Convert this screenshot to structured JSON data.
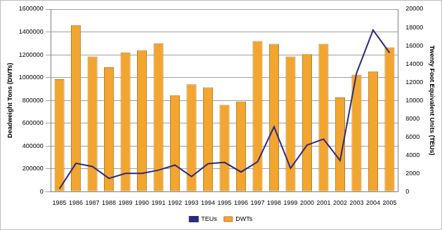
{
  "chart_data": {
    "type": "bar",
    "categories": [
      "1985",
      "1986",
      "1987",
      "1988",
      "1989",
      "1990",
      "1991",
      "1992",
      "1993",
      "1994",
      "1995",
      "1996",
      "1997",
      "1998",
      "1999",
      "2000",
      "2001",
      "2002",
      "2003",
      "2004",
      "2005"
    ],
    "series": [
      {
        "name": "DWTs",
        "type": "bar",
        "color": "#f2a630",
        "values": [
          985000,
          1460000,
          1185000,
          1090000,
          1220000,
          1240000,
          1300000,
          845000,
          940000,
          915000,
          760000,
          790000,
          1320000,
          1295000,
          1185000,
          1205000,
          1295000,
          825000,
          1025000,
          1055000,
          1265000
        ]
      },
      {
        "name": "TEUs",
        "type": "line",
        "axis": "y2",
        "color": "#2e2a7a",
        "values": [
          300,
          3100,
          2750,
          1450,
          2000,
          2000,
          2350,
          2900,
          1650,
          3050,
          3200,
          2150,
          3250,
          7100,
          2550,
          5100,
          5750,
          3400,
          13000,
          17700,
          15200
        ]
      }
    ],
    "y_label": "Deadweight Tons (DWTs)",
    "y2_label": "Twenty Foot Equivalent Units (TEUs)",
    "ylim": [
      0,
      1600000
    ],
    "yticks": [
      0,
      200000,
      400000,
      600000,
      800000,
      1000000,
      1200000,
      1400000,
      1600000
    ],
    "y2lim": [
      0,
      20000
    ],
    "y2ticks": [
      0,
      2000,
      4000,
      6000,
      8000,
      10000,
      12000,
      14000,
      16000,
      18000,
      20000
    ],
    "grid": true,
    "legend": "bottom"
  }
}
